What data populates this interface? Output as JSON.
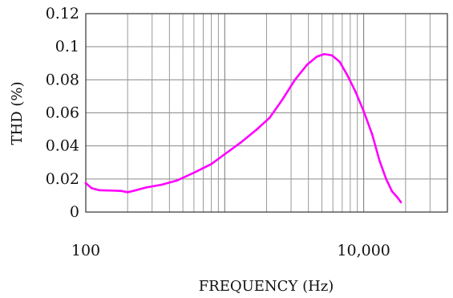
{
  "chart_data": {
    "type": "line",
    "title": "",
    "xlabel": "FREQUENCY (Hz)",
    "ylabel": "THD (%)",
    "x_scale": "log",
    "xlim": [
      100,
      40000
    ],
    "ylim": [
      0,
      0.12
    ],
    "x_tick_values": [
      100,
      10000
    ],
    "x_tick_labels": [
      "100",
      "10,000"
    ],
    "y_tick_values": [
      0,
      0.02,
      0.04,
      0.06,
      0.08,
      0.1,
      0.12
    ],
    "y_tick_labels": [
      "0",
      "0.02",
      "0.04",
      "0.06",
      "0.08",
      "0.1",
      "0.12"
    ],
    "grid": true,
    "series": [
      {
        "color": "#ff00ff",
        "points": [
          [
            100,
            0.0175
          ],
          [
            110,
            0.0145
          ],
          [
            125,
            0.0132
          ],
          [
            150,
            0.013
          ],
          [
            180,
            0.0128
          ],
          [
            200,
            0.012
          ],
          [
            230,
            0.0132
          ],
          [
            270,
            0.0148
          ],
          [
            350,
            0.0165
          ],
          [
            450,
            0.019
          ],
          [
            600,
            0.0238
          ],
          [
            800,
            0.029
          ],
          [
            1000,
            0.035
          ],
          [
            1300,
            0.042
          ],
          [
            1700,
            0.05
          ],
          [
            2100,
            0.057
          ],
          [
            2600,
            0.068
          ],
          [
            3200,
            0.08
          ],
          [
            3900,
            0.089
          ],
          [
            4600,
            0.094
          ],
          [
            5200,
            0.0955
          ],
          [
            5900,
            0.0948
          ],
          [
            6700,
            0.091
          ],
          [
            7600,
            0.083
          ],
          [
            8700,
            0.073
          ],
          [
            10000,
            0.061
          ],
          [
            11500,
            0.047
          ],
          [
            13000,
            0.031
          ],
          [
            14500,
            0.02
          ],
          [
            16000,
            0.0125
          ],
          [
            17500,
            0.0088
          ],
          [
            18500,
            0.006
          ]
        ]
      }
    ]
  }
}
